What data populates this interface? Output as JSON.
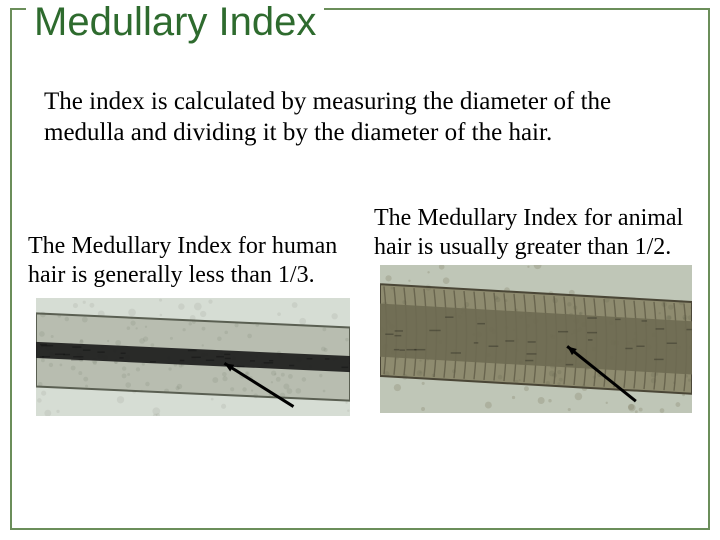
{
  "frame": {
    "border_color": "#6b8e5a"
  },
  "title": {
    "text": "Medullary Index",
    "color": "#2e6b2e"
  },
  "intro": {
    "text": "The index is calculated by measuring the diameter of the medulla and dividing it by the diameter of the hair."
  },
  "left": {
    "caption": "The Medullary Index for human hair is generally less than 1/3.",
    "image": {
      "type": "hair-micrograph",
      "background": "#d6ddd4",
      "hair_fill": "#b8bdb0",
      "hair_edge": "#5a5f52",
      "medulla_fill": "#1a1a1a",
      "medulla_ratio": 0.22,
      "arrow_color": "#000000",
      "mottle": "#a7ad9e"
    }
  },
  "right": {
    "caption": "The Medullary Index for animal hair is usually greater than 1/2.",
    "image": {
      "type": "hair-micrograph",
      "background": "#bfc6b7",
      "hair_fill": "#8e8b6f",
      "hair_edge": "#4a4636",
      "medulla_fill": "#6e6a52",
      "medulla_ratio": 0.58,
      "arrow_color": "#000000",
      "mottle": "#777456",
      "scale_pattern": true,
      "scale_color": "#5a5642"
    }
  }
}
